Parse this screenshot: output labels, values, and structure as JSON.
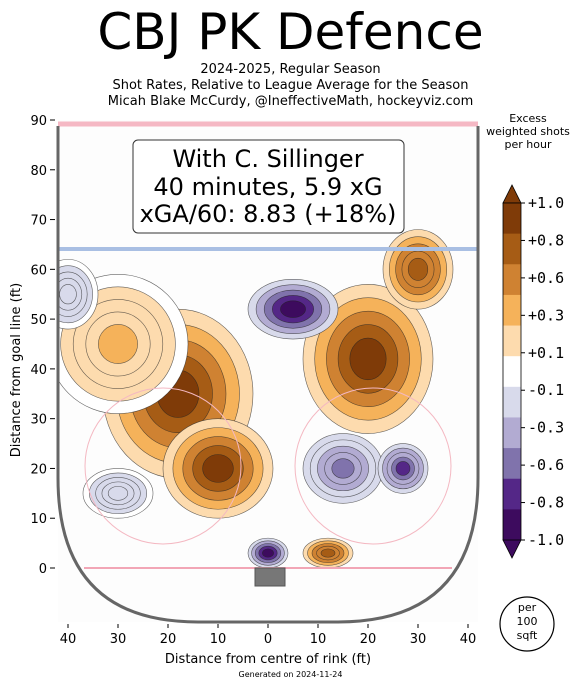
{
  "header": {
    "title": "CBJ PK Defence",
    "subtitle_lines": [
      "2024-2025, Regular Season",
      "Shot Rates, Relative to League Average for the Season",
      "Micah Blake McCurdy, @IneffectiveMath, hockeyviz.com"
    ]
  },
  "infobox": {
    "line1": "With C. Sillinger",
    "line2": "40 minutes, 5.9 xG",
    "line3": "xGA/60: 8.83 (+18%)"
  },
  "colorbar": {
    "title_lines": [
      "Excess",
      "weighted shots",
      "per hour"
    ],
    "labels": [
      "+1.0",
      "+0.8",
      "+0.6",
      "+0.3",
      "+0.1",
      "-0.1",
      "-0.3",
      "-0.6",
      "-0.8",
      "-1.0"
    ],
    "colors": [
      "#3d0b5e",
      "#542787",
      "#8073ac",
      "#b2abd2",
      "#d8daeb",
      "#ffffff",
      "#fddbae",
      "#f5b25a",
      "#cf8232",
      "#a65c15",
      "#7f3b08"
    ]
  },
  "per_area_badge": [
    "per",
    "100",
    "sqft"
  ],
  "footer": "Generated on 2024-11-24",
  "chart_data": {
    "type": "heatmap",
    "title": "CBJ PK Defence",
    "xlabel": "Distance from centre of rink (ft)",
    "ylabel": "Distance from goal line (ft)",
    "xlim": [
      -40,
      40
    ],
    "ylim": [
      0,
      90
    ],
    "x_ticks": [
      -40,
      -30,
      -20,
      -10,
      0,
      10,
      20,
      30,
      40
    ],
    "x_tick_labels": [
      "40",
      "30",
      "20",
      "10",
      "0",
      "10",
      "20",
      "30",
      "40"
    ],
    "y_ticks": [
      0,
      10,
      20,
      30,
      40,
      50,
      60,
      70,
      80,
      90
    ],
    "y_tick_labels": [
      "0",
      "10",
      "20",
      "30",
      "40",
      "50",
      "60",
      "70",
      "80",
      "90"
    ],
    "color_scale": [
      -1.0,
      1.0
    ],
    "regions": [
      {
        "x": -18,
        "y": 35,
        "value": 1.0
      },
      {
        "x": -10,
        "y": 20,
        "value": 1.0
      },
      {
        "x": -30,
        "y": 45,
        "value": 0.3
      },
      {
        "x": 20,
        "y": 42,
        "value": 1.0
      },
      {
        "x": 30,
        "y": 60,
        "value": 0.8
      },
      {
        "x": 12,
        "y": 3,
        "value": 0.8
      },
      {
        "x": 5,
        "y": 52,
        "value": -1.0
      },
      {
        "x": 15,
        "y": 20,
        "value": -0.6
      },
      {
        "x": 27,
        "y": 20,
        "value": -0.8
      },
      {
        "x": 0,
        "y": 3,
        "value": -1.0
      },
      {
        "x": -30,
        "y": 15,
        "value": -0.3
      },
      {
        "x": -40,
        "y": 55,
        "value": -0.3
      }
    ]
  }
}
